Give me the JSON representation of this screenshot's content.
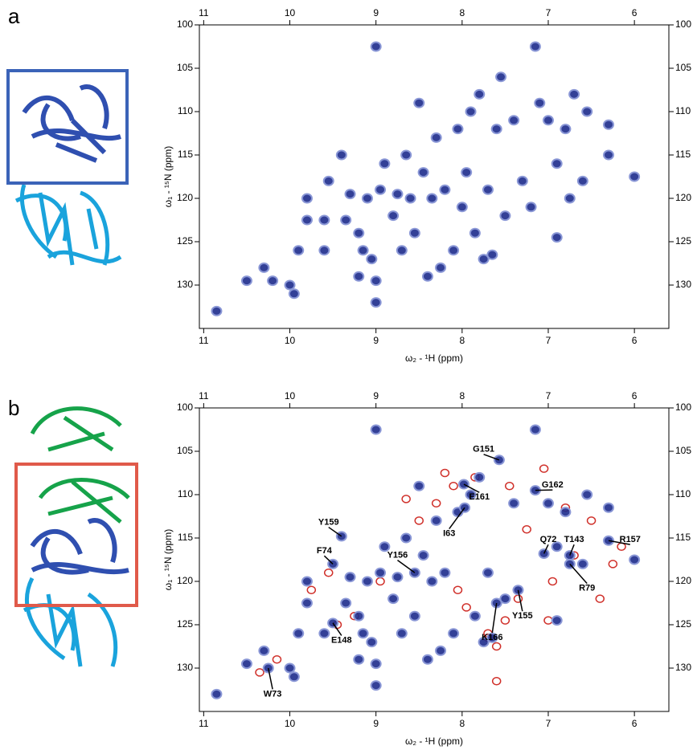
{
  "chart_data": [
    {
      "type": "scatter",
      "panel": "a",
      "xlabel": "ω₂ - ¹H  (ppm)",
      "ylabel": "ω₁ - ¹⁵N (ppm)",
      "xlim": [
        11.05,
        5.6
      ],
      "ylim": [
        100,
        135
      ],
      "xticks": [
        11,
        10,
        9,
        8,
        7,
        6
      ],
      "yticks": [
        100,
        105,
        110,
        115,
        120,
        125,
        130
      ],
      "series": [
        {
          "color": "#1d2b8c",
          "x": [
            10.85,
            10.5,
            10.3,
            10.2,
            10.0,
            9.95,
            9.9,
            9.8,
            9.8,
            9.6,
            9.6,
            9.55,
            9.4,
            9.35,
            9.3,
            9.2,
            9.2,
            9.15,
            9.05,
            9.0,
            9.0,
            9.0,
            8.95,
            8.9,
            8.8,
            8.7,
            8.65,
            8.6,
            8.55,
            8.5,
            8.45,
            8.4,
            8.3,
            8.25,
            8.2,
            8.1,
            8.05,
            8.0,
            7.95,
            7.9,
            7.85,
            7.8,
            7.75,
            7.7,
            7.6,
            7.55,
            7.5,
            7.4,
            7.3,
            7.2,
            7.15,
            7.1,
            7.0,
            6.9,
            6.8,
            6.75,
            6.7,
            6.6,
            6.55,
            6.3,
            6.3,
            6.0,
            6.9,
            7.65,
            8.35,
            8.75,
            9.1
          ],
          "y": [
            133,
            129.5,
            128,
            129.5,
            130,
            131,
            126,
            122.5,
            120,
            126,
            122.5,
            118,
            115,
            122.5,
            119.5,
            129,
            124,
            126,
            127,
            132,
            129.5,
            102.5,
            119,
            116,
            122,
            126,
            115,
            120,
            124,
            109,
            117,
            129,
            113,
            128,
            119,
            126,
            112,
            121,
            117,
            110,
            124,
            108,
            127,
            119,
            112,
            106,
            122,
            111,
            118,
            121,
            102.5,
            109,
            111,
            116,
            112,
            120,
            108,
            118,
            110,
            111.5,
            115,
            117.5,
            124.5,
            126.5,
            120,
            119.5,
            120
          ]
        }
      ]
    },
    {
      "type": "scatter",
      "panel": "b",
      "xlabel": "ω₂ - ¹H  (ppm)",
      "ylabel": "ω₁ - ¹⁵N (ppm)",
      "xlim": [
        11.05,
        5.6
      ],
      "ylim": [
        100,
        135
      ],
      "xticks": [
        11,
        10,
        9,
        8,
        7,
        6
      ],
      "yticks": [
        100,
        105,
        110,
        115,
        120,
        125,
        130
      ],
      "series": [
        {
          "color": "#d0302a",
          "x": [
            10.35,
            10.15,
            9.75,
            9.55,
            9.25,
            8.95,
            8.5,
            8.3,
            8.1,
            8.05,
            7.95,
            7.85,
            7.7,
            7.6,
            7.45,
            7.35,
            7.25,
            7.05,
            6.95,
            6.8,
            6.7,
            6.5,
            6.25,
            6.4,
            7.7,
            7.5,
            7.6,
            8.2,
            8.65,
            9.45,
            7.0,
            6.15
          ],
          "y": [
            130.5,
            129,
            121,
            119,
            124,
            120,
            113,
            111,
            109,
            121,
            123,
            108,
            126.5,
            127.5,
            109,
            122,
            114,
            107,
            120,
            111.5,
            117,
            113,
            118,
            122,
            126,
            124.5,
            131.5,
            107.5,
            110.5,
            125,
            124.5,
            116
          ]
        },
        {
          "color": "#1d2b8c",
          "x": [
            10.85,
            10.5,
            10.3,
            10.25,
            10.0,
            9.95,
            9.9,
            9.8,
            9.8,
            9.6,
            9.5,
            9.5,
            9.4,
            9.35,
            9.3,
            9.2,
            9.2,
            9.15,
            9.05,
            9.0,
            9.0,
            9.0,
            8.95,
            8.9,
            8.8,
            8.7,
            8.65,
            8.55,
            8.55,
            8.5,
            8.45,
            8.4,
            8.3,
            8.25,
            8.2,
            8.1,
            8.05,
            7.98,
            7.97,
            7.9,
            7.85,
            7.8,
            7.75,
            7.7,
            7.6,
            7.57,
            7.5,
            7.4,
            7.35,
            7.15,
            7.15,
            7.05,
            7.0,
            6.9,
            6.8,
            6.75,
            6.75,
            6.6,
            6.55,
            6.3,
            6.3,
            6.0,
            6.9,
            7.65,
            8.35,
            8.75,
            9.1
          ],
          "y": [
            133,
            129.5,
            128,
            130,
            130,
            131,
            126,
            122.5,
            120,
            126,
            124.8,
            118,
            114.8,
            122.5,
            119.5,
            129,
            124,
            126,
            127,
            132,
            129.5,
            102.5,
            119,
            116,
            122,
            126,
            115,
            119,
            124,
            109,
            117,
            129,
            113,
            128,
            119,
            126,
            112,
            108.8,
            111.5,
            110,
            124,
            108,
            127,
            119,
            122.5,
            106,
            122,
            111,
            121,
            109.5,
            102.5,
            116.8,
            111,
            116,
            112,
            117,
            118,
            118,
            110,
            115.3,
            111.5,
            117.5,
            124.5,
            126.5,
            120,
            119.5,
            120
          ]
        }
      ],
      "annotations": [
        {
          "text": "G151",
          "xy": [
            7.57,
            106
          ],
          "xytext": [
            7.75,
            104.8
          ]
        },
        {
          "text": "E161",
          "xy": [
            7.98,
            108.8
          ],
          "xytext": [
            7.8,
            110.3
          ]
        },
        {
          "text": "G162",
          "xy": [
            7.15,
            109.5
          ],
          "xytext": [
            6.95,
            108.9
          ]
        },
        {
          "text": "I63",
          "xy": [
            7.97,
            111.5
          ],
          "xytext": [
            8.15,
            114.5
          ]
        },
        {
          "text": "Y159",
          "xy": [
            9.4,
            114.8
          ],
          "xytext": [
            9.55,
            113.2
          ]
        },
        {
          "text": "F74",
          "xy": [
            9.5,
            118
          ],
          "xytext": [
            9.6,
            116.5
          ]
        },
        {
          "text": "Y156",
          "xy": [
            8.55,
            119
          ],
          "xytext": [
            8.75,
            117
          ]
        },
        {
          "text": "Q72",
          "xy": [
            7.05,
            116.8
          ],
          "xytext": [
            7.0,
            115.2
          ]
        },
        {
          "text": "T143",
          "xy": [
            6.75,
            117
          ],
          "xytext": [
            6.7,
            115.2
          ]
        },
        {
          "text": "R157",
          "xy": [
            6.3,
            115.3
          ],
          "xytext": [
            6.05,
            115.2
          ]
        },
        {
          "text": "R79",
          "xy": [
            6.75,
            118
          ],
          "xytext": [
            6.55,
            120.8
          ]
        },
        {
          "text": "Y155",
          "xy": [
            7.35,
            121
          ],
          "xytext": [
            7.3,
            124
          ]
        },
        {
          "text": "K166",
          "xy": [
            7.6,
            122.5
          ],
          "xytext": [
            7.65,
            126.5
          ]
        },
        {
          "text": "E148",
          "xy": [
            9.5,
            124.8
          ],
          "xytext": [
            9.4,
            126.8
          ]
        },
        {
          "text": "W73",
          "xy": [
            10.25,
            130
          ],
          "xytext": [
            10.2,
            133
          ]
        }
      ]
    }
  ]
}
